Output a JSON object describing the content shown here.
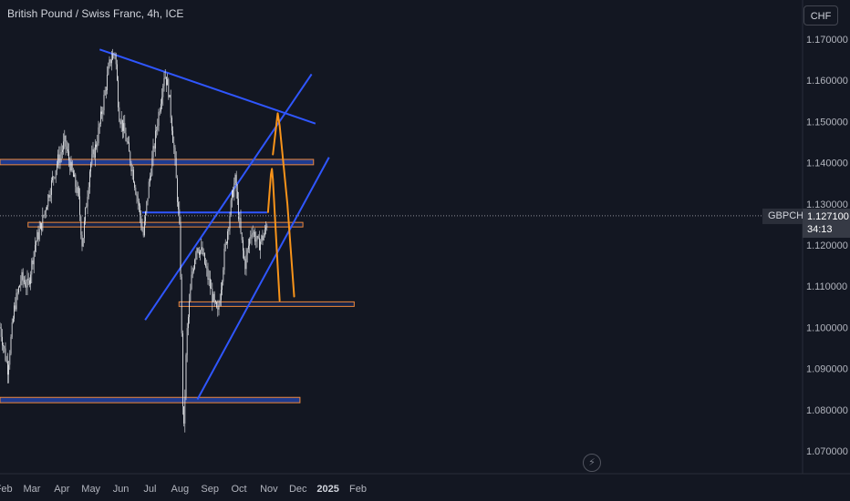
{
  "header": {
    "title": "British Pound / Swiss Franc, 4h, ICE",
    "currency_button": "CHF"
  },
  "price_marker": {
    "symbol": "GBPCHF",
    "price": "1.127100",
    "countdown": "34:13",
    "color": "#363a45"
  },
  "icons": {
    "replay": "lightning-icon"
  },
  "colors": {
    "background": "#131722",
    "candles": "#e9ebef",
    "trendline": "#2f56ff",
    "zone_fill": "#1e3a8f",
    "zone_border": "#f0883a",
    "projection": "#f7931a",
    "axis_text": "#b2b5be"
  },
  "chart_data": {
    "type": "candlestick",
    "title": "British Pound / Swiss Franc, 4h, ICE",
    "xlabel": "",
    "ylabel": "",
    "x_ticks": [
      "Feb",
      "Mar",
      "Apr",
      "May",
      "Jun",
      "Jul",
      "Aug",
      "Sep",
      "Oct",
      "Nov",
      "Dec",
      "2025",
      "Feb"
    ],
    "y_ticks": [
      "1.170000",
      "1.160000",
      "1.150000",
      "1.140000",
      "1.130000",
      "1.120000",
      "1.110000",
      "1.100000",
      "1.090000",
      "1.080000",
      "1.070000"
    ],
    "ylim": [
      1.067,
      1.174
    ],
    "price_path": [
      [
        "2024-01-29",
        1.1
      ],
      [
        "2024-02-06",
        1.09
      ],
      [
        "2024-02-13",
        1.105
      ],
      [
        "2024-02-20",
        1.112
      ],
      [
        "2024-02-27",
        1.11
      ],
      [
        "2024-03-05",
        1.12
      ],
      [
        "2024-03-12",
        1.125
      ],
      [
        "2024-03-20",
        1.133
      ],
      [
        "2024-03-28",
        1.14
      ],
      [
        "2024-04-05",
        1.145
      ],
      [
        "2024-04-12",
        1.138
      ],
      [
        "2024-04-19",
        1.132
      ],
      [
        "2024-04-23",
        1.12
      ],
      [
        "2024-05-01",
        1.139
      ],
      [
        "2024-05-08",
        1.145
      ],
      [
        "2024-05-15",
        1.155
      ],
      [
        "2024-05-22",
        1.165
      ],
      [
        "2024-05-27",
        1.167
      ],
      [
        "2024-05-31",
        1.152
      ],
      [
        "2024-06-07",
        1.146
      ],
      [
        "2024-06-14",
        1.138
      ],
      [
        "2024-06-20",
        1.13
      ],
      [
        "2024-06-25",
        1.122
      ],
      [
        "2024-07-01",
        1.135
      ],
      [
        "2024-07-08",
        1.147
      ],
      [
        "2024-07-14",
        1.157
      ],
      [
        "2024-07-17",
        1.162
      ],
      [
        "2024-07-21",
        1.158
      ],
      [
        "2024-07-27",
        1.143
      ],
      [
        "2024-08-02",
        1.122
      ],
      [
        "2024-08-05",
        1.08
      ],
      [
        "2024-08-06",
        1.075
      ],
      [
        "2024-08-09",
        1.098
      ],
      [
        "2024-08-14",
        1.112
      ],
      [
        "2024-08-19",
        1.12
      ],
      [
        "2024-08-25",
        1.118
      ],
      [
        "2024-08-31",
        1.112
      ],
      [
        "2024-09-06",
        1.106
      ],
      [
        "2024-09-10",
        1.103
      ],
      [
        "2024-09-17",
        1.118
      ],
      [
        "2024-09-25",
        1.132
      ],
      [
        "2024-09-28",
        1.136
      ],
      [
        "2024-10-04",
        1.122
      ],
      [
        "2024-10-08",
        1.115
      ],
      [
        "2024-10-15",
        1.124
      ],
      [
        "2024-10-22",
        1.12
      ],
      [
        "2024-10-29",
        1.123
      ],
      [
        "2024-11-01",
        1.127
      ]
    ],
    "trendlines": [
      {
        "from": [
          "2024-05-11",
          1.1675
        ],
        "to": [
          "2024-12-20",
          1.1495
        ]
      },
      {
        "from": [
          "2024-06-27",
          1.1018
        ],
        "to": [
          "2024-12-16",
          1.1615
        ]
      },
      {
        "from": [
          "2024-08-20",
          1.0825
        ],
        "to": [
          "2025-01-03",
          1.1413
        ]
      },
      {
        "from": [
          "2024-06-24",
          1.1279
        ],
        "to": [
          "2024-10-31",
          1.1279
        ]
      }
    ],
    "zones": [
      {
        "x": [
          "2024-01-29",
          "2024-12-18"
        ],
        "y": [
          1.1395,
          1.1408
        ],
        "style": "filled"
      },
      {
        "x": [
          "2024-02-27",
          "2024-12-07"
        ],
        "y": [
          1.1245,
          1.1255
        ],
        "style": "outline"
      },
      {
        "x": [
          "2024-08-01",
          "2025-01-29"
        ],
        "y": [
          1.1053,
          1.1062
        ],
        "style": "outline"
      },
      {
        "x": [
          "2024-01-29",
          "2024-12-04"
        ],
        "y": [
          1.0817,
          1.083
        ],
        "style": "filled"
      }
    ],
    "projections": [
      {
        "points": [
          [
            "2024-11-01",
            1.128
          ],
          [
            "2024-11-04",
            1.1372
          ],
          [
            "2024-11-05",
            1.1385
          ],
          [
            "2024-11-06",
            1.136
          ],
          [
            "2024-11-10",
            1.119
          ],
          [
            "2024-11-13",
            1.1065
          ]
        ]
      },
      {
        "points": [
          [
            "2024-11-06",
            1.142
          ],
          [
            "2024-11-10",
            1.15
          ],
          [
            "2024-11-11",
            1.152
          ],
          [
            "2024-11-13",
            1.149
          ],
          [
            "2024-11-21",
            1.13
          ],
          [
            "2024-11-28",
            1.1075
          ]
        ]
      }
    ],
    "last_price": 1.1271,
    "grid": false
  }
}
